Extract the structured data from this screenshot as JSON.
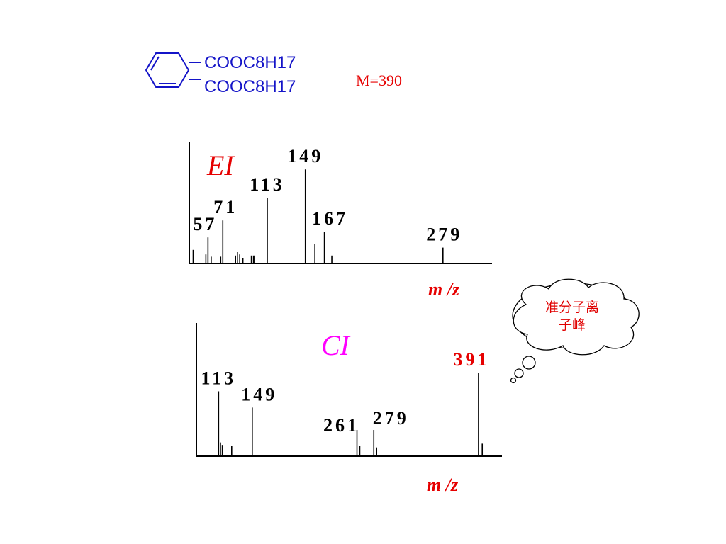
{
  "structure": {
    "substituent_1": "COOC8H17",
    "substituent_2": "COOC8H17",
    "ring_icon": "benzene-ring-icon"
  },
  "molecular_weight": "M=390",
  "callout": {
    "line1": "准分子离",
    "line2": "子峰"
  },
  "colors": {
    "formula": "#1414c8",
    "mw": "#e60000",
    "ei_label": "#e60000",
    "ci_label": "#ff00ff",
    "axis_label": "#e60000",
    "highlight_peak": "#e60000",
    "axis": "#000000"
  },
  "chart_data": [
    {
      "type": "bar",
      "title": "EI",
      "xlabel": "m /z",
      "ylabel": "",
      "xlim": [
        40,
        320
      ],
      "ylim": [
        0,
        100
      ],
      "peaks": [
        {
          "mz": 57,
          "intensity": 23,
          "label": "57"
        },
        {
          "mz": 71,
          "intensity": 38,
          "label": "71"
        },
        {
          "mz": 113,
          "intensity": 58,
          "label": "113"
        },
        {
          "mz": 149,
          "intensity": 83,
          "label": "149"
        },
        {
          "mz": 167,
          "intensity": 28,
          "label": "167"
        },
        {
          "mz": 279,
          "intensity": 14,
          "label": "279"
        },
        {
          "mz": 43,
          "intensity": 12
        },
        {
          "mz": 55,
          "intensity": 8
        },
        {
          "mz": 60,
          "intensity": 6
        },
        {
          "mz": 69,
          "intensity": 6
        },
        {
          "mz": 83,
          "intensity": 7
        },
        {
          "mz": 85,
          "intensity": 10
        },
        {
          "mz": 87,
          "intensity": 8
        },
        {
          "mz": 90,
          "intensity": 5
        },
        {
          "mz": 98,
          "intensity": 7
        },
        {
          "mz": 100,
          "intensity": 7
        },
        {
          "mz": 101,
          "intensity": 7
        },
        {
          "mz": 158,
          "intensity": 17
        },
        {
          "mz": 174,
          "intensity": 7
        }
      ]
    },
    {
      "type": "bar",
      "title": "CI",
      "xlabel": "m /z",
      "ylabel": "",
      "xlim": [
        90,
        410
      ],
      "ylim": [
        0,
        100
      ],
      "peaks": [
        {
          "mz": 113,
          "intensity": 52,
          "label": "113"
        },
        {
          "mz": 149,
          "intensity": 39,
          "label": "149"
        },
        {
          "mz": 261,
          "intensity": 21,
          "label": "261"
        },
        {
          "mz": 279,
          "intensity": 21,
          "label": "279"
        },
        {
          "mz": 391,
          "intensity": 67,
          "label": "391",
          "highlight": true
        },
        {
          "mz": 115,
          "intensity": 11
        },
        {
          "mz": 117,
          "intensity": 9
        },
        {
          "mz": 127,
          "intensity": 8
        },
        {
          "mz": 264,
          "intensity": 8
        },
        {
          "mz": 282,
          "intensity": 7
        },
        {
          "mz": 395,
          "intensity": 10
        }
      ]
    }
  ]
}
